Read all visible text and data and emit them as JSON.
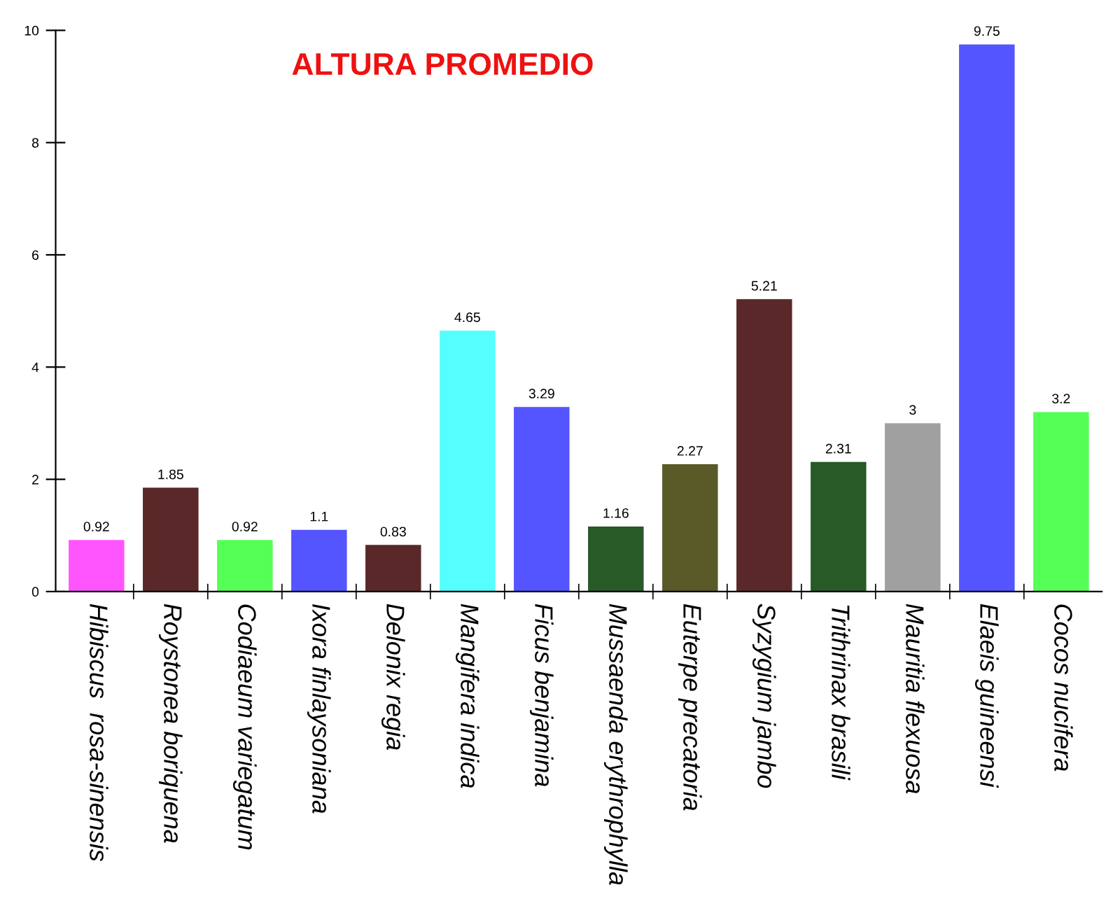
{
  "chart_data": {
    "type": "bar",
    "title": "ALTURA PROMEDIO",
    "categories": [
      "Hibiscus  rosa-sinensis",
      "Roystonea boriquena",
      "Codiaeum variegatum",
      "Ixora finlaysoniana",
      "Delonix regia",
      "Mangifera indica",
      "Ficus benjamina",
      "Mussaenda erythrophylla",
      "Euterpe precatoria",
      "Syzygium jambo",
      "Trithrinax brasili",
      "Mauritia flexuosa",
      "Elaeis guineensi",
      "Cocos nucifera"
    ],
    "values": [
      0.92,
      1.85,
      0.92,
      1.1,
      0.83,
      4.65,
      3.29,
      1.16,
      2.27,
      5.21,
      2.31,
      3,
      9.75,
      3.2
    ],
    "colors": [
      "#ff55ff",
      "#5a2828",
      "#55ff55",
      "#5555ff",
      "#5a2828",
      "#55ffff",
      "#5555ff",
      "#285a28",
      "#5a5a28",
      "#5a2828",
      "#285a28",
      "#a0a0a0",
      "#5555ff",
      "#55ff55"
    ],
    "ylim": [
      0,
      10
    ],
    "yticks": [
      0,
      2,
      4,
      6,
      8,
      10
    ],
    "data_labels": true,
    "grid": false,
    "legend": false
  }
}
